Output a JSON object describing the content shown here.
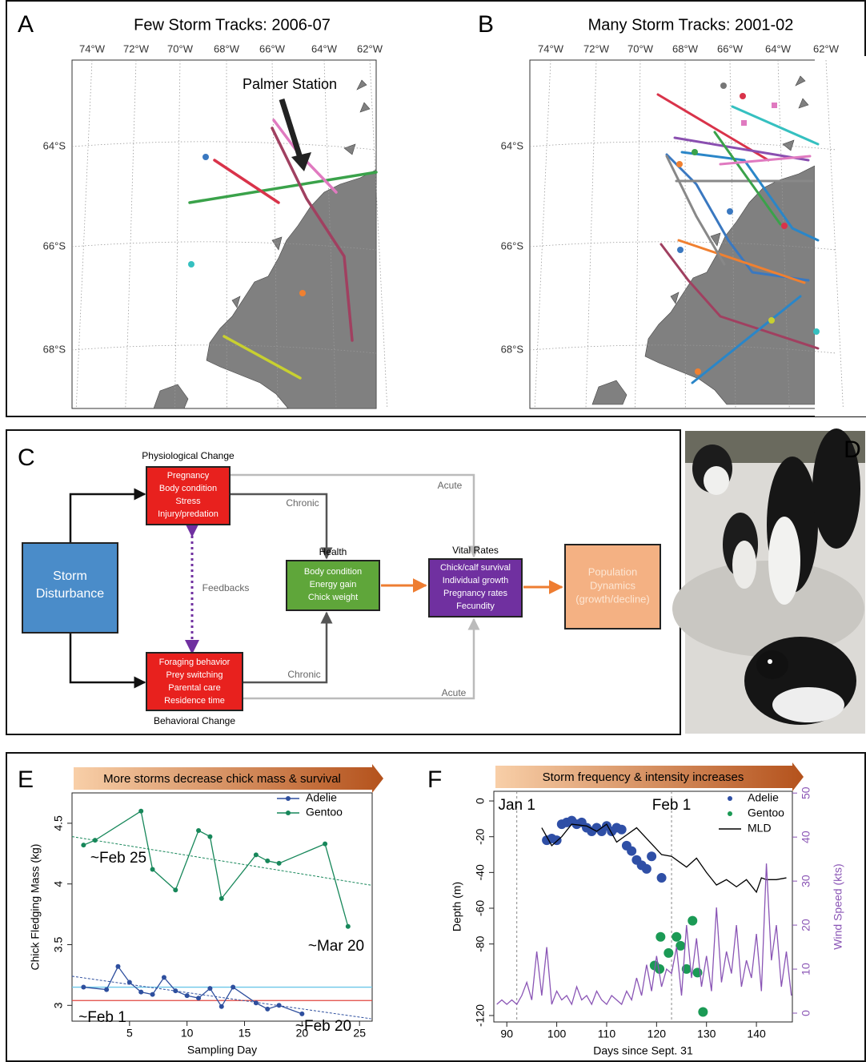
{
  "figure": {
    "map_a": {
      "label": "A",
      "title": "Few Storm Tracks: 2006-07",
      "lon_ticks": [
        "74°W",
        "72°W",
        "70°W",
        "68°W",
        "66°W",
        "64°W",
        "62°W"
      ],
      "lat_ticks": [
        "64°S",
        "66°S",
        "68°S"
      ],
      "station": "Palmer Station"
    },
    "map_b": {
      "label": "B",
      "title": "Many Storm Tracks: 2001-02",
      "lon_ticks": [
        "74°W",
        "72°W",
        "70°W",
        "68°W",
        "66°W",
        "64°W",
        "62°W"
      ],
      "lat_ticks": [
        "64°S",
        "66°S",
        "68°S"
      ]
    },
    "diagram": {
      "label": "C",
      "nodes": {
        "storm": {
          "lines": [
            "Storm",
            "Disturbance"
          ]
        },
        "physiological": {
          "title": "Physiological Change",
          "lines": [
            "Pregnancy",
            "Body condition",
            "Stress",
            "Injury/predation"
          ]
        },
        "behavioral": {
          "title": "Behavioral Change",
          "lines": [
            "Foraging behavior",
            "Prey switching",
            "Parental care",
            "Residence time"
          ]
        },
        "health": {
          "title": "Health",
          "lines": [
            "Body condition",
            "Energy gain",
            "Chick weight"
          ]
        },
        "vital": {
          "title": "Vital Rates",
          "lines": [
            "Chick/calf survival",
            "Individual growth",
            "Pregnancy rates",
            "Fecundity"
          ]
        },
        "population": {
          "lines": [
            "Population",
            "Dynamics",
            "(growth/decline)"
          ]
        }
      },
      "edges": {
        "acute_top": "Acute",
        "chronic_top": "Chronic",
        "feedbacks": "Feedbacks",
        "chronic_bottom": "Chronic",
        "acute_bottom": "Acute"
      }
    },
    "photo": {
      "label": "D"
    }
  },
  "chart_data": [
    {
      "type": "line",
      "panel_label": "E",
      "banner": "More storms decrease chick mass & survival",
      "xlabel": "Sampling Day",
      "ylabel": "Chick Fledging Mass (kg)",
      "xlim": [
        0,
        26.1
      ],
      "ylim": [
        2.87,
        4.75
      ],
      "xticks": [
        5,
        10,
        15,
        20,
        25
      ],
      "yticks": [
        3.0,
        3.5,
        4.0,
        4.5
      ],
      "series": [
        {
          "name": "Adelie",
          "color": "#2e4f9e",
          "mode": "lines+markers",
          "x": [
            1,
            3,
            4,
            5,
            6,
            7,
            8,
            9,
            10,
            11,
            12,
            13,
            14,
            16,
            17,
            18,
            20
          ],
          "values": [
            3.15,
            3.13,
            3.32,
            3.19,
            3.11,
            3.09,
            3.23,
            3.12,
            3.08,
            3.06,
            3.14,
            2.99,
            3.15,
            3.02,
            2.97,
            3.0,
            2.93
          ]
        },
        {
          "name": "Gentoo",
          "color": "#17875a",
          "mode": "lines+markers",
          "x": [
            1,
            2,
            6,
            7,
            9,
            11,
            12,
            13,
            16,
            17,
            18,
            22,
            24
          ],
          "values": [
            4.32,
            4.36,
            4.6,
            4.12,
            3.95,
            4.44,
            4.39,
            3.88,
            4.24,
            4.19,
            4.17,
            4.33,
            3.65
          ]
        }
      ],
      "trend_lines": [
        {
          "color": "#2e4f9e",
          "x": [
            0,
            26
          ],
          "values": [
            3.24,
            2.89
          ]
        },
        {
          "color": "#17875a",
          "x": [
            0,
            26
          ],
          "values": [
            4.39,
            3.99
          ]
        }
      ],
      "hlines": [
        {
          "color": "#6cc7e8",
          "value": 3.15
        },
        {
          "color": "#e0453f",
          "value": 3.04
        }
      ],
      "annotations": [
        "~Feb 25",
        "~Mar 20",
        "~Feb 1",
        "~Feb 20"
      ]
    },
    {
      "type": "scatter",
      "panel_label": "F",
      "banner": "Storm frequency & intensity increases",
      "xlabel": "Days since Sept. 31",
      "ylabel": "Depth (m)",
      "y2label": "Wind Speed (kts)",
      "xlim": [
        87.4,
        147.2
      ],
      "ylim": [
        -123.6,
        5.4
      ],
      "y2lim": [
        -2,
        50.4
      ],
      "xticks": [
        90,
        100,
        110,
        120,
        130,
        140
      ],
      "yticks": [
        0,
        -20,
        -40,
        -60,
        -80,
        -120
      ],
      "y2ticks": [
        0,
        10,
        20,
        30,
        40,
        50
      ],
      "y2color": "#8a55b5",
      "vlines": [
        {
          "value": 92,
          "label": "Jan 1"
        },
        {
          "value": 123,
          "label": "Feb 1"
        }
      ],
      "series": [
        {
          "name": "Adelie",
          "color": "#2f4fa6",
          "mode": "markers",
          "x": [
            98,
            99,
            100,
            101,
            102,
            103,
            104,
            105,
            106,
            107,
            108,
            109,
            110,
            111,
            112,
            113,
            114,
            115,
            116,
            117,
            118,
            119,
            121
          ],
          "values": [
            -22,
            -21,
            -22,
            -13,
            -12,
            -11,
            -13,
            -12,
            -15,
            -17,
            -15,
            -17,
            -14,
            -17,
            -15,
            -16,
            -25,
            -28,
            -33,
            -36,
            -38,
            -31,
            -43
          ]
        },
        {
          "name": "Gentoo",
          "color": "#1b9a55",
          "mode": "markers",
          "x": [
            119.6,
            120.6,
            120.8,
            122.4,
            124,
            124.8,
            126,
            127.2,
            128.2,
            129.3
          ],
          "values": [
            -92,
            -94,
            -76,
            -85,
            -76,
            -81,
            -94,
            -67,
            -96,
            -118
          ]
        },
        {
          "name": "MLD",
          "color": "#000000",
          "mode": "lines",
          "x": [
            97,
            99,
            101,
            103,
            106,
            108,
            110,
            112,
            114,
            116,
            118,
            120,
            121,
            123,
            125,
            126,
            128,
            130,
            132,
            134,
            136,
            138,
            140,
            141,
            142,
            144,
            146
          ],
          "values": [
            -15,
            -25,
            -20,
            -13,
            -14,
            -17,
            -13,
            -23,
            -19,
            -15,
            -21,
            -27,
            -30,
            -31,
            -35,
            -37,
            -32,
            -40,
            -47,
            -44,
            -48,
            -44,
            -51,
            -43,
            -44,
            -44,
            -43
          ]
        },
        {
          "color": "#8a55b5",
          "mode": "lines",
          "axis": "y2",
          "x": [
            88,
            89,
            90,
            91,
            92,
            93,
            94,
            95,
            96,
            97,
            98,
            99,
            100,
            101,
            102,
            103,
            104,
            105,
            106,
            107,
            108,
            109,
            110,
            111,
            112,
            113,
            114,
            115,
            116,
            117,
            118,
            119,
            120,
            121,
            122,
            123,
            124,
            125,
            126,
            127,
            128,
            129,
            130,
            131,
            132,
            133,
            134,
            135,
            136,
            137,
            138,
            139,
            140,
            141,
            142,
            143,
            144,
            145,
            146,
            147
          ],
          "values": [
            2,
            3,
            2,
            3,
            2,
            4,
            7,
            3,
            14,
            4,
            15,
            2,
            5,
            3,
            4,
            2,
            6,
            3,
            4,
            2,
            5,
            3,
            2,
            4,
            3,
            2,
            5,
            3,
            8,
            4,
            11,
            5,
            13,
            6,
            10,
            9,
            15,
            4,
            20,
            8,
            17,
            6,
            13,
            5,
            24,
            7,
            14,
            9,
            20,
            6,
            12,
            8,
            18,
            5,
            34,
            12,
            20,
            6,
            14,
            4
          ]
        }
      ]
    }
  ]
}
